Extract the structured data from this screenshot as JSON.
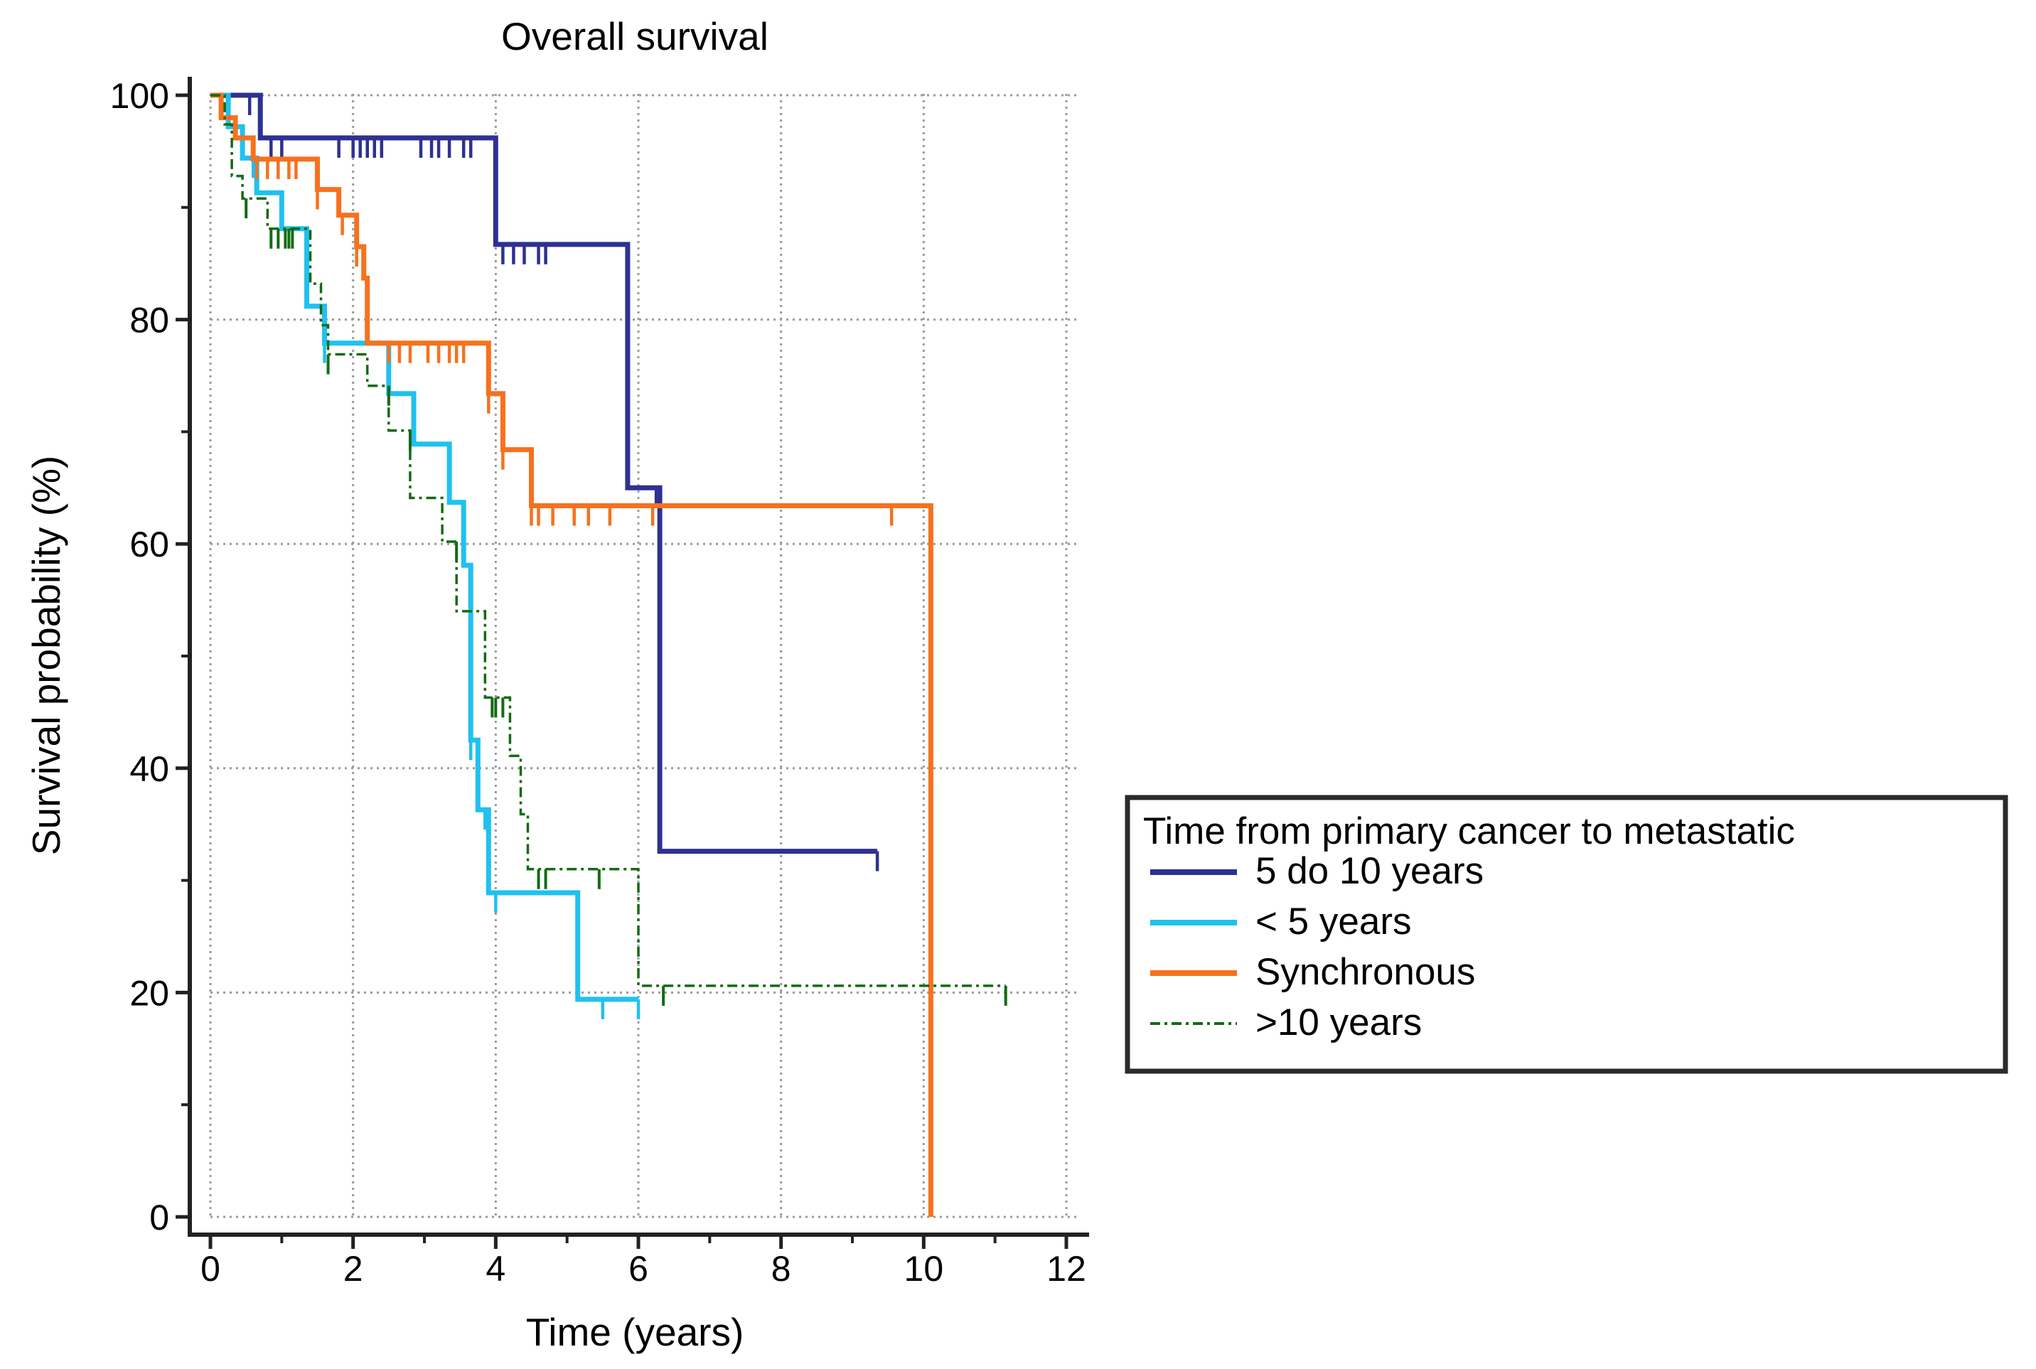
{
  "chart_data": {
    "type": "line",
    "subtype": "kaplan-meier step",
    "title": "Overall survival",
    "xlabel": "Time (years)",
    "ylabel": "Survival probability (%)",
    "xlim": [
      0,
      12
    ],
    "ylim": [
      0,
      100
    ],
    "x_ticks": [
      "0",
      "2",
      "4",
      "6",
      "8",
      "10",
      "12"
    ],
    "y_ticks": [
      "0",
      "20",
      "40",
      "60",
      "80",
      "100"
    ],
    "grid": true,
    "legend": {
      "title": "Time from primary cancer to metastatic",
      "placement": "right"
    },
    "series": [
      {
        "name": "5 do 10 years",
        "color": "#2E3192",
        "style": "solid",
        "steps": [
          [
            0,
            100
          ],
          [
            0.7,
            100
          ],
          [
            0.7,
            96.2
          ],
          [
            4.0,
            96.2
          ],
          [
            4.0,
            86.7
          ],
          [
            5.85,
            86.7
          ],
          [
            5.85,
            65
          ],
          [
            6.3,
            65
          ],
          [
            6.3,
            32.6
          ],
          [
            9.35,
            32.6
          ]
        ],
        "censored": [
          [
            0.55,
            100
          ],
          [
            0.85,
            96.2
          ],
          [
            1.0,
            96.2
          ],
          [
            1.8,
            96.2
          ],
          [
            2.0,
            96.2
          ],
          [
            2.1,
            96.2
          ],
          [
            2.2,
            96.2
          ],
          [
            2.3,
            96.2
          ],
          [
            2.4,
            96.2
          ],
          [
            2.95,
            96.2
          ],
          [
            3.1,
            96.2
          ],
          [
            3.2,
            96.2
          ],
          [
            3.35,
            96.2
          ],
          [
            3.55,
            96.2
          ],
          [
            3.65,
            96.2
          ],
          [
            4.1,
            86.7
          ],
          [
            4.25,
            86.7
          ],
          [
            4.4,
            86.7
          ],
          [
            4.6,
            86.7
          ],
          [
            4.7,
            86.7
          ],
          [
            6.25,
            65
          ],
          [
            9.35,
            32.6
          ]
        ]
      },
      {
        "name": "< 5 years",
        "color": "#1FC1F0",
        "style": "solid",
        "steps": [
          [
            0,
            100
          ],
          [
            0.25,
            100
          ],
          [
            0.25,
            97.2
          ],
          [
            0.45,
            97.2
          ],
          [
            0.45,
            94.4
          ],
          [
            0.65,
            94.4
          ],
          [
            0.65,
            91.3
          ],
          [
            1.0,
            91.3
          ],
          [
            1.0,
            88.1
          ],
          [
            1.35,
            88.1
          ],
          [
            1.35,
            81.2
          ],
          [
            1.6,
            81.2
          ],
          [
            1.6,
            77.9
          ],
          [
            2.5,
            77.9
          ],
          [
            2.5,
            73.4
          ],
          [
            2.85,
            73.4
          ],
          [
            2.85,
            68.9
          ],
          [
            3.35,
            68.9
          ],
          [
            3.35,
            63.7
          ],
          [
            3.55,
            63.7
          ],
          [
            3.55,
            58.1
          ],
          [
            3.65,
            58.1
          ],
          [
            3.65,
            42.5
          ],
          [
            3.75,
            42.5
          ],
          [
            3.75,
            36.3
          ],
          [
            3.9,
            36.3
          ],
          [
            3.9,
            28.9
          ],
          [
            5.15,
            28.9
          ],
          [
            5.15,
            19.4
          ],
          [
            6.0,
            19.4
          ]
        ],
        "censored": [
          [
            0.6,
            94.4
          ],
          [
            1.35,
            88.1
          ],
          [
            1.6,
            77.9
          ],
          [
            2.5,
            77.9
          ],
          [
            2.85,
            73.4
          ],
          [
            3.65,
            42.5
          ],
          [
            3.85,
            36.3
          ],
          [
            4.0,
            28.9
          ],
          [
            5.5,
            19.4
          ],
          [
            6.0,
            19.4
          ]
        ]
      },
      {
        "name": "Synchronous",
        "color": "#F7711E",
        "style": "solid",
        "steps": [
          [
            0,
            100
          ],
          [
            0.15,
            100
          ],
          [
            0.15,
            98.0
          ],
          [
            0.35,
            98.0
          ],
          [
            0.35,
            96.2
          ],
          [
            0.6,
            96.2
          ],
          [
            0.6,
            94.3
          ],
          [
            1.5,
            94.3
          ],
          [
            1.5,
            91.6
          ],
          [
            1.8,
            91.6
          ],
          [
            1.8,
            89.3
          ],
          [
            2.05,
            89.3
          ],
          [
            2.05,
            86.5
          ],
          [
            2.15,
            86.5
          ],
          [
            2.15,
            83.7
          ],
          [
            2.2,
            83.7
          ],
          [
            2.2,
            77.9
          ],
          [
            3.9,
            77.9
          ],
          [
            3.9,
            73.4
          ],
          [
            4.1,
            73.4
          ],
          [
            4.1,
            68.4
          ],
          [
            4.5,
            68.4
          ],
          [
            4.5,
            63.4
          ],
          [
            10.1,
            63.4
          ],
          [
            10.1,
            0
          ]
        ],
        "censored": [
          [
            0.65,
            94.3
          ],
          [
            0.8,
            94.3
          ],
          [
            0.95,
            94.3
          ],
          [
            1.1,
            94.3
          ],
          [
            1.2,
            94.3
          ],
          [
            1.5,
            91.6
          ],
          [
            1.85,
            89.3
          ],
          [
            2.05,
            86.5
          ],
          [
            2.2,
            83.7
          ],
          [
            2.5,
            77.9
          ],
          [
            2.65,
            77.9
          ],
          [
            2.8,
            77.9
          ],
          [
            3.05,
            77.9
          ],
          [
            3.2,
            77.9
          ],
          [
            3.35,
            77.9
          ],
          [
            3.45,
            77.9
          ],
          [
            3.55,
            77.9
          ],
          [
            3.9,
            73.4
          ],
          [
            4.1,
            68.4
          ],
          [
            4.5,
            63.4
          ],
          [
            4.6,
            63.4
          ],
          [
            4.8,
            63.4
          ],
          [
            5.1,
            63.4
          ],
          [
            5.3,
            63.4
          ],
          [
            5.6,
            63.4
          ],
          [
            6.2,
            63.4
          ],
          [
            9.55,
            63.4
          ]
        ]
      },
      {
        "name": ">10 years",
        "color": "#136B13",
        "style": "dashdot",
        "steps": [
          [
            0,
            100
          ],
          [
            0.2,
            100
          ],
          [
            0.2,
            97.4
          ],
          [
            0.3,
            97.4
          ],
          [
            0.3,
            92.8
          ],
          [
            0.45,
            92.8
          ],
          [
            0.45,
            90.8
          ],
          [
            0.8,
            90.8
          ],
          [
            0.8,
            88.1
          ],
          [
            1.4,
            88.1
          ],
          [
            1.4,
            83.2
          ],
          [
            1.55,
            83.2
          ],
          [
            1.55,
            79.5
          ],
          [
            1.65,
            79.5
          ],
          [
            1.65,
            76.9
          ],
          [
            2.2,
            76.9
          ],
          [
            2.2,
            74.1
          ],
          [
            2.5,
            74.1
          ],
          [
            2.5,
            70.1
          ],
          [
            2.8,
            70.1
          ],
          [
            2.8,
            64.1
          ],
          [
            3.25,
            64.1
          ],
          [
            3.25,
            60.2
          ],
          [
            3.45,
            60.2
          ],
          [
            3.45,
            54.0
          ],
          [
            3.85,
            54.0
          ],
          [
            3.85,
            46.3
          ],
          [
            4.2,
            46.3
          ],
          [
            4.2,
            41.1
          ],
          [
            4.35,
            41.1
          ],
          [
            4.35,
            35.9
          ],
          [
            4.45,
            35.9
          ],
          [
            4.45,
            31.0
          ],
          [
            6.0,
            31.0
          ],
          [
            6.0,
            20.6
          ],
          [
            11.15,
            20.6
          ]
        ],
        "censored": [
          [
            0.5,
            90.8
          ],
          [
            0.85,
            88.1
          ],
          [
            0.95,
            88.1
          ],
          [
            1.05,
            88.1
          ],
          [
            1.1,
            88.1
          ],
          [
            1.15,
            88.1
          ],
          [
            1.65,
            76.9
          ],
          [
            2.5,
            74.1
          ],
          [
            2.8,
            70.1
          ],
          [
            3.45,
            60.2
          ],
          [
            3.95,
            46.3
          ],
          [
            4.0,
            46.3
          ],
          [
            4.1,
            46.3
          ],
          [
            4.6,
            31.0
          ],
          [
            4.7,
            31.0
          ],
          [
            5.45,
            31.0
          ],
          [
            6.35,
            20.6
          ],
          [
            11.15,
            20.6
          ]
        ]
      }
    ]
  }
}
